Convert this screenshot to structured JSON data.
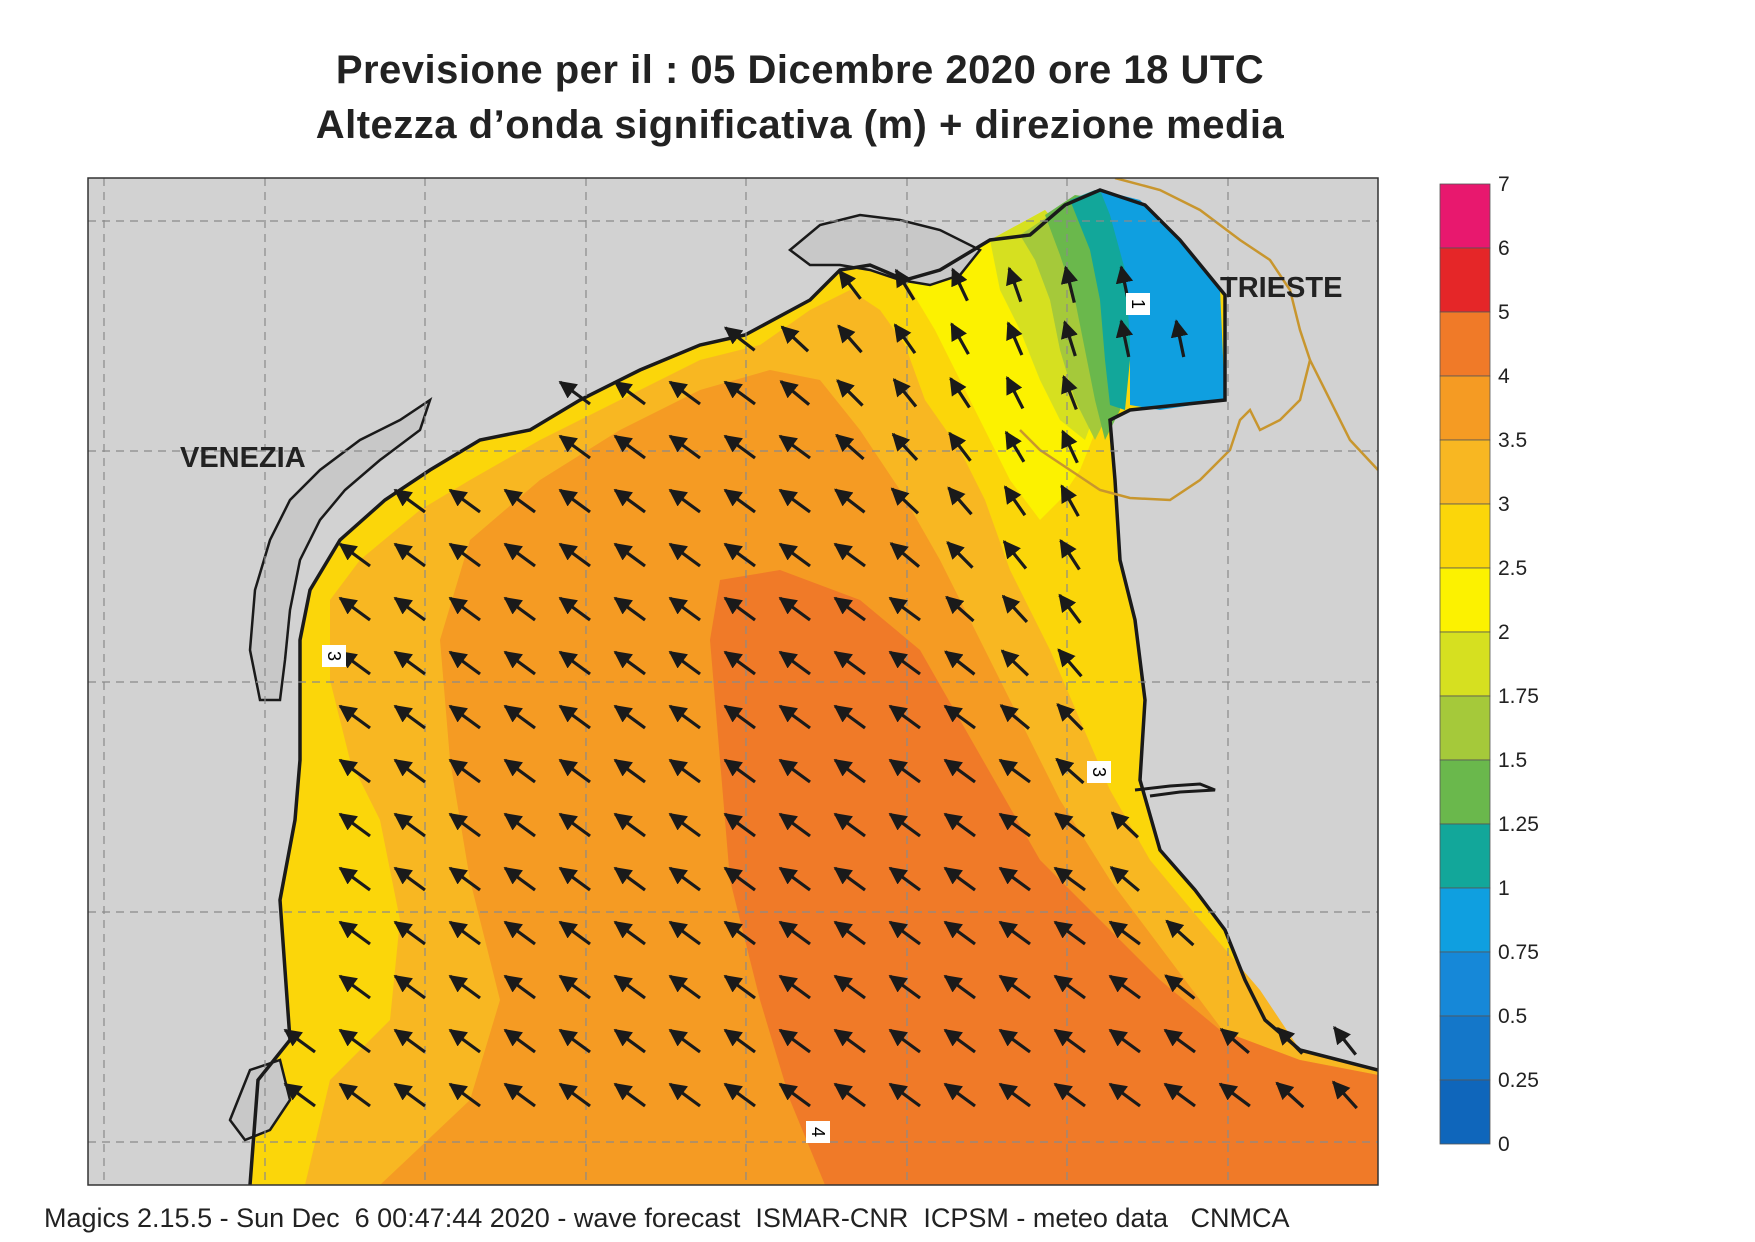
{
  "header": {
    "title_line1": "Previsione per il  :  05 Dicembre  2020   ore 18 UTC",
    "title_line2": "Altezza d’onda significativa (m) + direzione media"
  },
  "footer": {
    "credits": "Magics 2.15.5 - Sun Dec  6 00:47:44 2020 - wave forecast  ISMAR-CNR  ICPSM - meteo data   CNMCA"
  },
  "map": {
    "places": [
      {
        "id": "venezia",
        "label": "VENEZIA"
      },
      {
        "id": "trieste",
        "label": "TRIESTE"
      }
    ],
    "contour_labels": [
      "1",
      "3",
      "3",
      "4"
    ],
    "land_color": "#d2d2d2",
    "coast_color": "#1a1a1a",
    "border_color": "#c8962e",
    "arrow_color": "#1a1a1a",
    "mean_direction": "NW"
  },
  "colorbar": {
    "labels": [
      "7",
      "6",
      "5",
      "4",
      "3.5",
      "3",
      "2.5",
      "2",
      "1.75",
      "1.5",
      "1.25",
      "1",
      "0.75",
      "0.5",
      "0.25",
      "0"
    ],
    "colors": [
      "#e8186e",
      "#e52628",
      "#f07a28",
      "#f59b23",
      "#f8b722",
      "#fbd60a",
      "#fcf200",
      "#d6e020",
      "#a5c93a",
      "#6ab84c",
      "#12a79a",
      "#0f9fe0",
      "#1688d8",
      "#1477c9",
      "#0f66bb"
    ]
  }
}
